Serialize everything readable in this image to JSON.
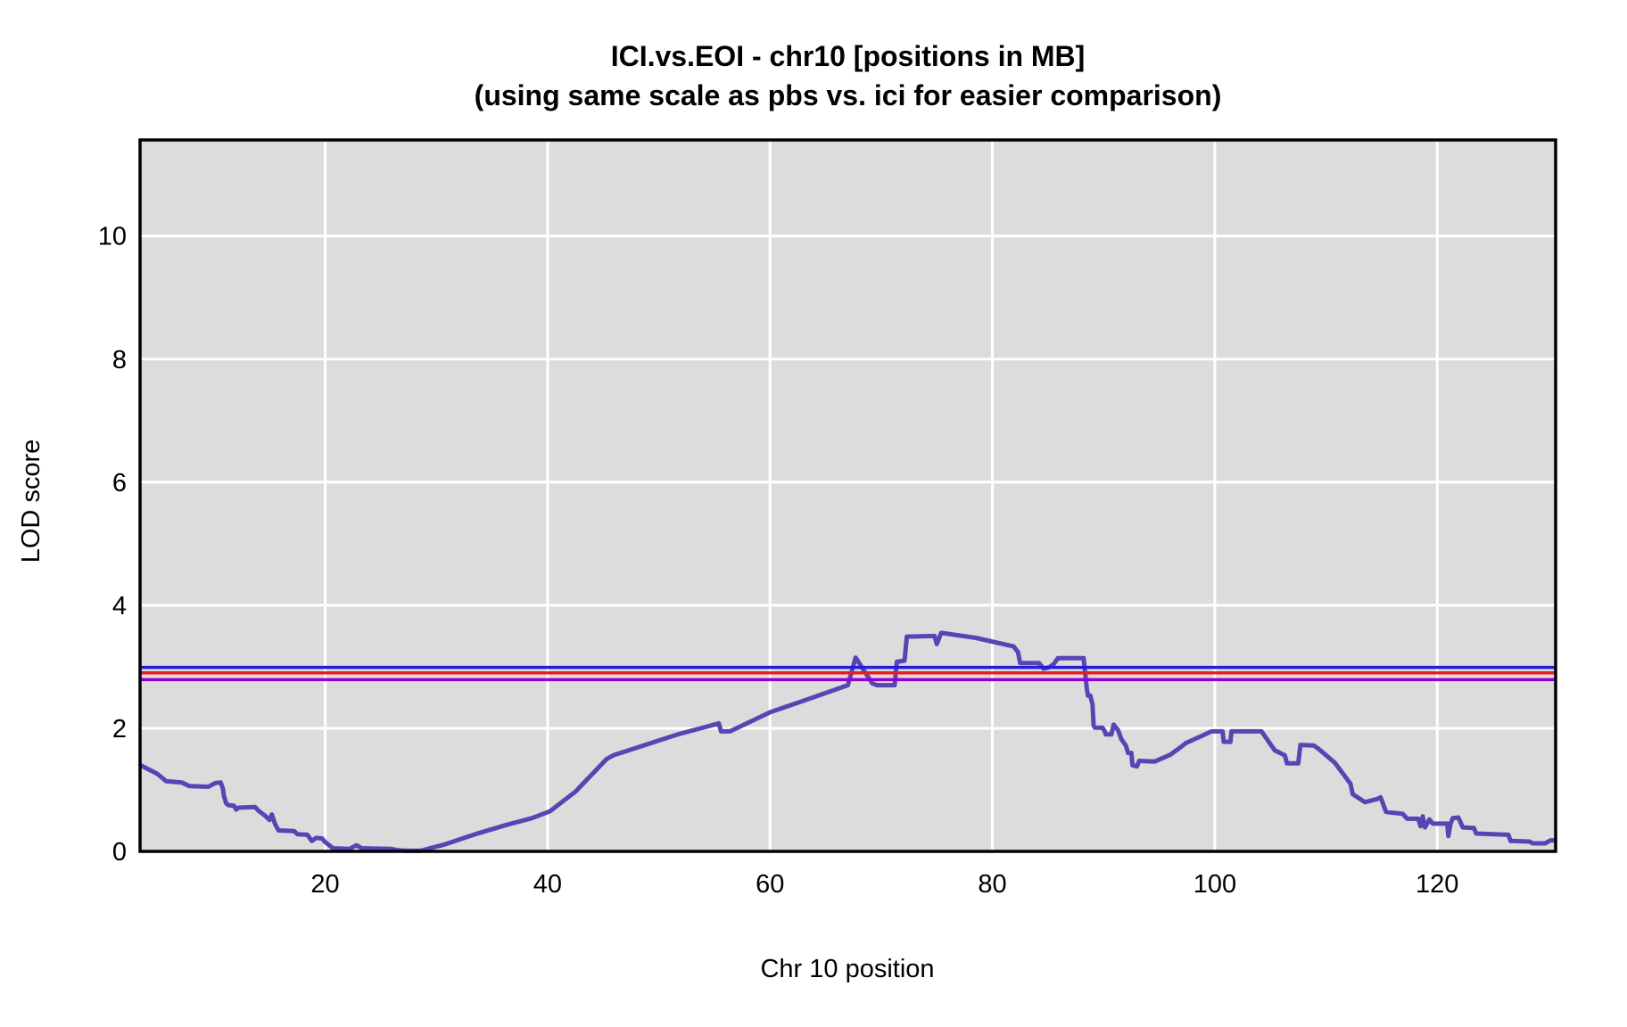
{
  "title": {
    "line1": "ICI.vs.EOI - chr10 [positions in MB]",
    "line2": "(using same scale as pbs vs. ici for easier comparison)"
  },
  "chart_data": {
    "type": "line",
    "title": "ICI.vs.EOI - chr10 [positions in MB]",
    "subtitle": "(using same scale as pbs vs. ici for easier comparison)",
    "xlabel": "Chr 10 position",
    "ylabel": "LOD score",
    "x_ticks": [
      20,
      40,
      60,
      80,
      100,
      120
    ],
    "y_ticks": [
      0,
      2,
      4,
      6,
      8,
      10
    ],
    "xlim": [
      3.35,
      130.65
    ],
    "ylim": [
      0,
      11.56
    ],
    "grid": true,
    "legend_position": "none",
    "panel_background": "#dcdcdc",
    "grid_color": "#ffffff",
    "border_color": "#000000",
    "series": [
      {
        "name": "LOD curve (ICI vs EOI, chr10)",
        "color": "#5646b4",
        "points": [
          [
            3.4,
            1.4
          ],
          [
            4.9,
            1.26
          ],
          [
            5.7,
            1.14
          ],
          [
            7.1,
            1.12
          ],
          [
            7.8,
            1.06
          ],
          [
            9.5,
            1.05
          ],
          [
            10.1,
            1.11
          ],
          [
            10.6,
            1.12
          ],
          [
            10.8,
            1.02
          ],
          [
            10.9,
            0.9
          ],
          [
            11.1,
            0.78
          ],
          [
            11.3,
            0.75
          ],
          [
            11.8,
            0.74
          ],
          [
            12.0,
            0.68
          ],
          [
            12.2,
            0.71
          ],
          [
            13.7,
            0.72
          ],
          [
            14.0,
            0.66
          ],
          [
            14.6,
            0.58
          ],
          [
            15.0,
            0.51
          ],
          [
            15.2,
            0.6
          ],
          [
            15.5,
            0.44
          ],
          [
            15.8,
            0.34
          ],
          [
            17.2,
            0.33
          ],
          [
            17.5,
            0.28
          ],
          [
            18.4,
            0.27
          ],
          [
            18.8,
            0.17
          ],
          [
            19.2,
            0.22
          ],
          [
            19.7,
            0.21
          ],
          [
            20.0,
            0.15
          ],
          [
            20.7,
            0.05
          ],
          [
            22.2,
            0.04
          ],
          [
            22.8,
            0.1
          ],
          [
            23.3,
            0.05
          ],
          [
            25.9,
            0.04
          ],
          [
            26.5,
            0.02
          ],
          [
            27.2,
            0.01
          ],
          [
            28.6,
            0.01
          ],
          [
            29.6,
            0.06
          ],
          [
            30.7,
            0.11
          ],
          [
            33.5,
            0.28
          ],
          [
            36.3,
            0.43
          ],
          [
            38.6,
            0.54
          ],
          [
            40.2,
            0.65
          ],
          [
            42.5,
            0.97
          ],
          [
            45.3,
            1.5
          ],
          [
            45.9,
            1.56
          ],
          [
            51.7,
            1.9
          ],
          [
            55.4,
            2.08
          ],
          [
            55.6,
            1.95
          ],
          [
            56.4,
            1.95
          ],
          [
            60.0,
            2.26
          ],
          [
            64.8,
            2.56
          ],
          [
            67.0,
            2.7
          ],
          [
            67.7,
            3.15
          ],
          [
            69.2,
            2.73
          ],
          [
            69.6,
            2.7
          ],
          [
            71.2,
            2.7
          ],
          [
            71.4,
            3.08
          ],
          [
            72.1,
            3.1
          ],
          [
            72.3,
            3.49
          ],
          [
            74.8,
            3.5
          ],
          [
            75.0,
            3.37
          ],
          [
            75.4,
            3.55
          ],
          [
            78.5,
            3.47
          ],
          [
            81.9,
            3.33
          ],
          [
            82.3,
            3.24
          ],
          [
            82.5,
            3.06
          ],
          [
            84.2,
            3.06
          ],
          [
            84.6,
            2.97
          ],
          [
            85.1,
            2.99
          ],
          [
            85.5,
            3.04
          ],
          [
            85.9,
            3.14
          ],
          [
            88.2,
            3.14
          ],
          [
            88.4,
            2.8
          ],
          [
            88.5,
            2.63
          ],
          [
            88.6,
            2.53
          ],
          [
            88.8,
            2.53
          ],
          [
            89.0,
            2.39
          ],
          [
            89.1,
            2.05
          ],
          [
            89.2,
            2.01
          ],
          [
            89.9,
            2.01
          ],
          [
            90.1,
            1.95
          ],
          [
            90.2,
            1.9
          ],
          [
            90.7,
            1.9
          ],
          [
            90.9,
            2.06
          ],
          [
            91.3,
            1.97
          ],
          [
            91.6,
            1.82
          ],
          [
            92.0,
            1.72
          ],
          [
            92.2,
            1.6
          ],
          [
            92.5,
            1.6
          ],
          [
            92.6,
            1.4
          ],
          [
            93.0,
            1.38
          ],
          [
            93.2,
            1.47
          ],
          [
            94.6,
            1.46
          ],
          [
            96.0,
            1.57
          ],
          [
            96.9,
            1.69
          ],
          [
            97.4,
            1.76
          ],
          [
            99.0,
            1.89
          ],
          [
            99.7,
            1.95
          ],
          [
            100.7,
            1.95
          ],
          [
            100.8,
            1.78
          ],
          [
            101.4,
            1.78
          ],
          [
            101.5,
            1.95
          ],
          [
            104.2,
            1.95
          ],
          [
            105.4,
            1.64
          ],
          [
            106.3,
            1.56
          ],
          [
            106.5,
            1.43
          ],
          [
            107.5,
            1.43
          ],
          [
            107.7,
            1.73
          ],
          [
            108.9,
            1.72
          ],
          [
            109.3,
            1.67
          ],
          [
            110.8,
            1.44
          ],
          [
            112.2,
            1.1
          ],
          [
            112.4,
            0.93
          ],
          [
            113.5,
            0.8
          ],
          [
            114.6,
            0.85
          ],
          [
            114.9,
            0.88
          ],
          [
            115.4,
            0.64
          ],
          [
            116.9,
            0.61
          ],
          [
            117.3,
            0.53
          ],
          [
            118.3,
            0.53
          ],
          [
            118.5,
            0.41
          ],
          [
            118.7,
            0.57
          ],
          [
            118.9,
            0.39
          ],
          [
            119.3,
            0.52
          ],
          [
            119.6,
            0.45
          ],
          [
            120.9,
            0.45
          ],
          [
            121.0,
            0.25
          ],
          [
            121.2,
            0.45
          ],
          [
            121.4,
            0.54
          ],
          [
            121.9,
            0.55
          ],
          [
            122.3,
            0.39
          ],
          [
            123.3,
            0.38
          ],
          [
            123.5,
            0.29
          ],
          [
            126.4,
            0.27
          ],
          [
            126.6,
            0.17
          ],
          [
            128.3,
            0.16
          ],
          [
            128.6,
            0.13
          ],
          [
            129.7,
            0.13
          ],
          [
            130.2,
            0.18
          ],
          [
            130.6,
            0.18
          ]
        ]
      }
    ],
    "threshold_lines": [
      {
        "name": "blue-threshold",
        "color": "#1e1edc",
        "lod": 2.99
      },
      {
        "name": "red-threshold",
        "color": "#e81e1e",
        "lod": 2.9
      },
      {
        "name": "purple-threshold",
        "color": "#9400d3",
        "lod": 2.79
      }
    ]
  }
}
